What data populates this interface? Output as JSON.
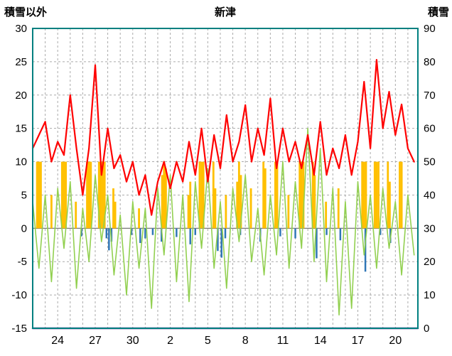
{
  "header": {
    "left_label": "積雪以外",
    "title": "新津",
    "right_label": "積雪"
  },
  "chart_data": {
    "type": "line",
    "title": "新津",
    "left_axis": {
      "label": "積雪以外",
      "min": -15,
      "max": 30,
      "step": 5,
      "ticks": [
        30,
        25,
        20,
        15,
        10,
        5,
        0,
        -5,
        -10,
        -15
      ]
    },
    "right_axis": {
      "label": "積雪",
      "min": 0,
      "max": 90,
      "step": 10,
      "ticks": [
        90,
        80,
        70,
        60,
        50,
        40,
        30,
        20,
        10,
        0
      ]
    },
    "x_axis": {
      "min": 0,
      "max": 30.8,
      "grid_step": 1,
      "ticks": [
        {
          "label": "24",
          "t": 2
        },
        {
          "label": "27",
          "t": 5
        },
        {
          "label": "30",
          "t": 8
        },
        {
          "label": "2",
          "t": 11
        },
        {
          "label": "5",
          "t": 14
        },
        {
          "label": "8",
          "t": 17
        },
        {
          "label": "11",
          "t": 20
        },
        {
          "label": "14",
          "t": 23
        },
        {
          "label": "17",
          "t": 26
        },
        {
          "label": "20",
          "t": 29
        }
      ]
    },
    "style": {
      "frame": "#008080",
      "grid": "#aaaaaa",
      "zero_line": "#808080",
      "text": "#000000",
      "red": "#ff0000",
      "green": "#92d050",
      "orange": "#ffc000",
      "blue": "#2e75b6",
      "purple": "#7030a0",
      "background": "#ffffff"
    },
    "series": [
      {
        "name": "orange-bars",
        "type": "bar",
        "axis": "left",
        "color": "#ffc000",
        "bar_width": 0.16,
        "points": [
          [
            0.35,
            10
          ],
          [
            0.5,
            10
          ],
          [
            0.65,
            10
          ],
          [
            1.5,
            5
          ],
          [
            2.35,
            10
          ],
          [
            2.5,
            10
          ],
          [
            2.65,
            10
          ],
          [
            3.45,
            4
          ],
          [
            4.35,
            10
          ],
          [
            4.5,
            10
          ],
          [
            4.65,
            10
          ],
          [
            5.3,
            10
          ],
          [
            5.45,
            10
          ],
          [
            5.6,
            10
          ],
          [
            5.75,
            10
          ],
          [
            6.45,
            6
          ],
          [
            6.6,
            4
          ],
          [
            8.5,
            3
          ],
          [
            10.35,
            8
          ],
          [
            10.5,
            10
          ],
          [
            10.65,
            9
          ],
          [
            12.45,
            5
          ],
          [
            12.6,
            7
          ],
          [
            13.35,
            10
          ],
          [
            13.5,
            10
          ],
          [
            13.65,
            10
          ],
          [
            14.45,
            10
          ],
          [
            14.6,
            6
          ],
          [
            15.45,
            5
          ],
          [
            16.35,
            7
          ],
          [
            16.5,
            10
          ],
          [
            16.65,
            8
          ],
          [
            17.45,
            6
          ],
          [
            18.45,
            10
          ],
          [
            18.6,
            9
          ],
          [
            19.4,
            10
          ],
          [
            19.55,
            10
          ],
          [
            20.45,
            5
          ],
          [
            21.35,
            10
          ],
          [
            21.5,
            10
          ],
          [
            21.65,
            10
          ],
          [
            22.4,
            10
          ],
          [
            22.55,
            8
          ],
          [
            23.45,
            4
          ],
          [
            24.45,
            6
          ],
          [
            26.35,
            10
          ],
          [
            26.5,
            10
          ],
          [
            26.65,
            10
          ],
          [
            27.35,
            10
          ],
          [
            27.5,
            10
          ],
          [
            27.65,
            10
          ],
          [
            28.4,
            10
          ],
          [
            28.55,
            7
          ],
          [
            29.35,
            10
          ],
          [
            29.5,
            10
          ]
        ]
      },
      {
        "name": "blue-bars",
        "type": "bar",
        "axis": "left",
        "color": "#2e75b6",
        "bar_width": 0.14,
        "points": [
          [
            3.9,
            -1.2
          ],
          [
            5.9,
            -1.5
          ],
          [
            6.1,
            -3.3
          ],
          [
            6.3,
            -2.0
          ],
          [
            7.9,
            -1.0
          ],
          [
            8.6,
            -2.2
          ],
          [
            9.0,
            -1.5
          ],
          [
            9.6,
            -1.0
          ],
          [
            10.3,
            -2.0
          ],
          [
            11.5,
            -1.3
          ],
          [
            12.6,
            -2.4
          ],
          [
            13.0,
            -1.0
          ],
          [
            14.8,
            -3.4
          ],
          [
            15.1,
            -4.4
          ],
          [
            15.4,
            -1.5
          ],
          [
            16.6,
            -1.0
          ],
          [
            18.2,
            -2.0
          ],
          [
            19.8,
            -1.2
          ],
          [
            21.0,
            -1.5
          ],
          [
            22.7,
            -4.5
          ],
          [
            23.5,
            -1.0
          ],
          [
            24.6,
            -1.8
          ],
          [
            26.6,
            -6.5
          ],
          [
            27.8,
            -1.0
          ],
          [
            28.6,
            -2.2
          ]
        ]
      },
      {
        "name": "green-line",
        "type": "line",
        "axis": "left",
        "color": "#92d050",
        "width": 1.6,
        "x_start": 0,
        "x_step": 0.5,
        "values": [
          4,
          -6,
          5,
          -8,
          6,
          -3,
          7,
          -9,
          3,
          -5,
          8,
          -2,
          5,
          -7,
          2,
          -10,
          4,
          -6,
          3,
          -12,
          6,
          -4,
          8,
          -8,
          5,
          -11,
          7,
          -3,
          9,
          -6,
          4,
          -9,
          6,
          -2,
          8,
          -5,
          3,
          -7,
          5,
          -4,
          10,
          -6,
          7,
          -3,
          15,
          -5,
          12,
          -8,
          6,
          -13,
          4,
          -12,
          7,
          -4,
          5,
          -6,
          6,
          -3,
          4,
          -7,
          5,
          -4
        ]
      },
      {
        "name": "red-line",
        "type": "line",
        "axis": "left",
        "color": "#ff0000",
        "width": 2.2,
        "x_start": 0,
        "x_step": 0.5,
        "values": [
          12,
          14,
          16,
          10,
          13,
          11,
          20,
          12,
          5,
          12,
          24.5,
          8,
          15,
          9,
          11,
          7,
          10,
          5,
          8,
          2,
          7,
          10,
          6,
          10,
          7,
          13,
          8,
          15,
          7,
          14,
          9,
          17,
          10,
          13,
          18.5,
          10,
          15,
          11,
          19.5,
          9,
          15,
          10,
          13,
          9,
          14,
          8,
          16,
          8,
          12,
          9,
          14,
          8,
          13,
          22,
          12,
          25.3,
          15,
          20.5,
          14,
          18.6,
          12,
          10
        ]
      },
      {
        "name": "purple-snow-line",
        "type": "line",
        "axis": "right",
        "color": "#7030a0",
        "width": 2.5,
        "points": [
          [
            0,
            0
          ],
          [
            30.8,
            0
          ]
        ]
      }
    ]
  }
}
